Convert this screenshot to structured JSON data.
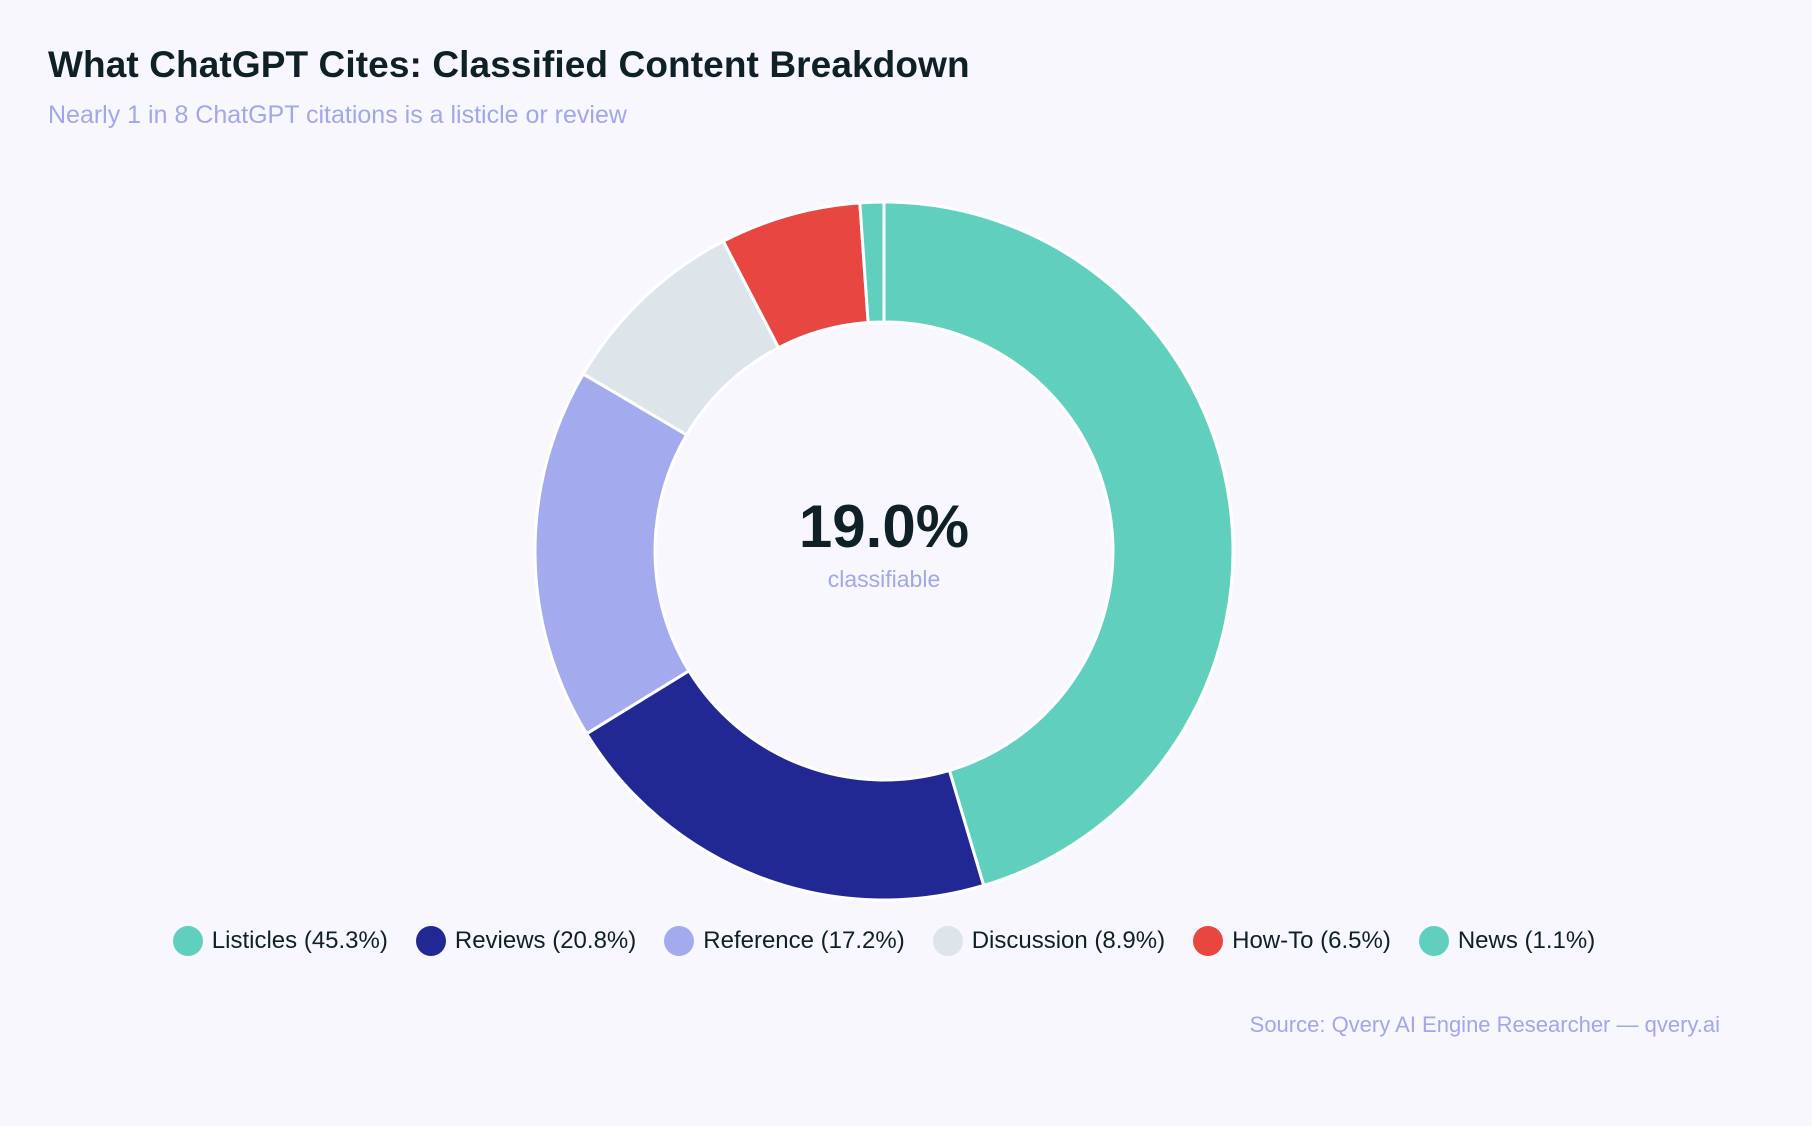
{
  "chart_data": {
    "type": "pie",
    "variant": "donut",
    "title": "What ChatGPT Cites: Classified Content Breakdown",
    "subtitle": "Nearly 1 in 8 ChatGPT citations is a listicle or review",
    "center_value": "19.0%",
    "center_label": "classifiable",
    "legend_position": "bottom",
    "slices": [
      {
        "label": "Listicles",
        "legend_text": "Listicles (45.3%)",
        "value": 45.3,
        "color": "#61cfbd"
      },
      {
        "label": "Reviews",
        "legend_text": "Reviews (20.8%)",
        "value": 20.8,
        "color": "#212894"
      },
      {
        "label": "Reference",
        "legend_text": "Reference (17.2%)",
        "value": 17.2,
        "color": "#a4aaee"
      },
      {
        "label": "Discussion",
        "legend_text": "Discussion (8.9%)",
        "value": 8.9,
        "color": "#dde4ea"
      },
      {
        "label": "How-To",
        "legend_text": "How-To (6.5%)",
        "value": 6.5,
        "color": "#e84640"
      },
      {
        "label": "News",
        "legend_text": "News (1.1%)",
        "value": 1.1,
        "color": "#61cfbd"
      }
    ],
    "source": "Source: Qvery AI Engine Researcher — qvery.ai"
  }
}
